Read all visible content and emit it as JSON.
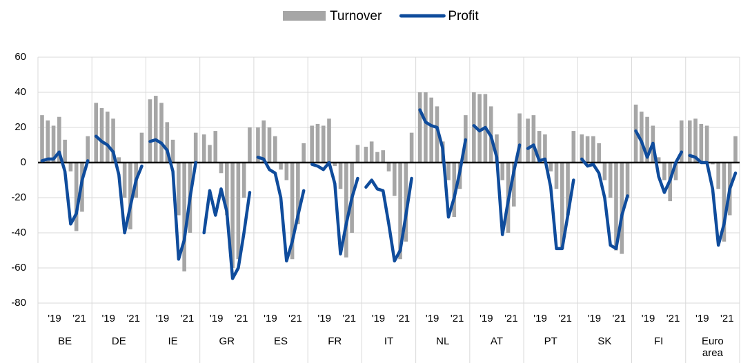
{
  "chart_data": {
    "type": "bar",
    "categories": [
      "BE",
      "DE",
      "IE",
      "GR",
      "ES",
      "FR",
      "IT",
      "NL",
      "AT",
      "PT",
      "SK",
      "FI",
      "Euro area"
    ],
    "sub_labels": [
      "'19",
      "'21"
    ],
    "series": [
      {
        "name": "Turnover",
        "type": "bar",
        "color": "#a6a6a6",
        "values": [
          [
            27,
            24,
            21,
            26,
            13,
            -5,
            -39,
            -28,
            15
          ],
          [
            34,
            31,
            29,
            25,
            3,
            -20,
            -38,
            -20,
            17
          ],
          [
            36,
            38,
            34,
            23,
            13,
            -30,
            -62,
            -40,
            17
          ],
          [
            16,
            10,
            18,
            -6,
            -30,
            -60,
            -55,
            -20,
            20
          ],
          [
            20,
            24,
            20,
            15,
            -4,
            -10,
            -55,
            -35,
            11
          ],
          [
            21,
            22,
            21,
            25,
            -2,
            -15,
            -54,
            -40,
            10
          ],
          [
            9,
            12,
            6,
            7,
            -5,
            -19,
            -55,
            -45,
            17
          ],
          [
            40,
            40,
            37,
            32,
            12,
            -10,
            -31,
            -15,
            27
          ],
          [
            40,
            39,
            39,
            32,
            16,
            -10,
            -40,
            -25,
            28
          ],
          [
            25,
            27,
            18,
            16,
            -5,
            -15,
            -49,
            -30,
            18
          ],
          [
            16,
            15,
            15,
            11,
            -10,
            -20,
            -50,
            -52,
            -20
          ],
          [
            33,
            29,
            26,
            21,
            3,
            -10,
            -22,
            -10,
            24
          ],
          [
            24,
            25,
            22,
            21,
            -1,
            -15,
            -45,
            -30,
            15
          ]
        ]
      },
      {
        "name": "Profit",
        "type": "line",
        "color": "#0f4c9c",
        "values": [
          [
            1,
            2,
            2,
            6,
            -5,
            -35,
            -29,
            -10,
            1
          ],
          [
            15,
            12,
            10,
            6,
            -7,
            -40,
            -25,
            -10,
            -2
          ],
          [
            12,
            13,
            11,
            7,
            -5,
            -55,
            -44,
            -20,
            0
          ],
          [
            -40,
            -16,
            -30,
            -15,
            -28,
            -66,
            -60,
            -40,
            -17
          ],
          [
            3,
            2,
            -4,
            -6,
            -20,
            -56,
            -45,
            -30,
            -16
          ],
          [
            -1,
            -2,
            -4,
            0,
            -12,
            -52,
            -35,
            -20,
            -9
          ],
          [
            -14,
            -10,
            -15,
            -16,
            -35,
            -56,
            -50,
            -30,
            -9
          ],
          [
            30,
            23,
            21,
            20,
            8,
            -31,
            -20,
            -5,
            13
          ],
          [
            21,
            18,
            20,
            15,
            3,
            -41,
            -22,
            -5,
            10
          ],
          [
            8,
            10,
            1,
            2,
            -14,
            -49,
            -49,
            -30,
            -10
          ],
          [
            2,
            -2,
            -1,
            -6,
            -20,
            -47,
            -49,
            -30,
            -19
          ],
          [
            18,
            12,
            3,
            11,
            -8,
            -17,
            -10,
            0,
            6
          ],
          [
            4,
            3,
            0,
            0,
            -15,
            -47,
            -35,
            -15,
            -6
          ]
        ]
      }
    ],
    "ylim": [
      -80,
      60
    ],
    "yticks": [
      -80,
      -60,
      -40,
      -20,
      0,
      20,
      40,
      60
    ],
    "grid": true,
    "legend": "top"
  }
}
